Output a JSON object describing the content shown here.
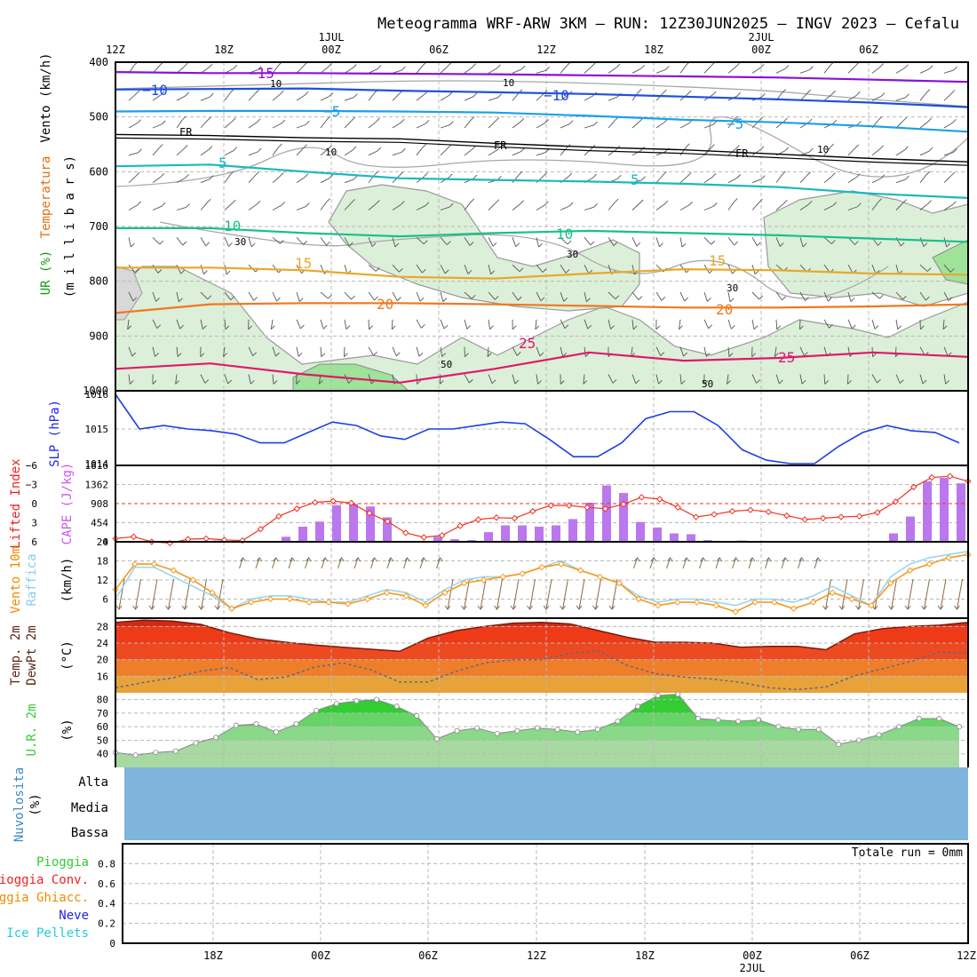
{
  "title": "Meteogramma WRF-ARW 3KM — RUN: 12Z30JUN2025 — INGV 2023 — Cefalu",
  "time_axis": {
    "top_labels": [
      "12Z",
      "18Z",
      "00Z",
      "06Z",
      "12Z",
      "18Z",
      "00Z",
      "06Z"
    ],
    "top_dates": [
      "1JUL",
      "2JUL"
    ],
    "bottom_labels": [
      "18Z",
      "00Z",
      "06Z",
      "12Z",
      "18Z",
      "00Z",
      "06Z",
      "12Z"
    ],
    "bottom_date": "2JUL"
  },
  "panel_labels": {
    "vento_kmh": "Vento (km/h)",
    "temperatura": "Temperatura",
    "ur_pct": "UR (%)",
    "millibars": "(m i l l i b a r s)",
    "slp": "SLP (hPa)",
    "lifted_index": "Lifted Index",
    "cape": "CAPE (J/kg)",
    "vento10m": "Vento 10m",
    "raffica": "Raffica",
    "kmh": "(km/h)",
    "temp2m": "Temp. 2m",
    "dewpt2m": "DewPt 2m",
    "degc": "(°C)",
    "ur2m": "U.R. 2m",
    "pct": "(%)",
    "nuvolosita": "Nuvolosita",
    "nuv_pct": "(%)",
    "alta": "Alta",
    "media": "Media",
    "bassa": "Bassa",
    "pioggia": "Pioggia",
    "pioggia_conv": "Pioggia Conv.",
    "pioggia_ghiacc": "Pioggia Ghiacc.",
    "neve": "Neve",
    "ice_pellets": "Ice Pellets",
    "totale_run": "Totale run = 0mm"
  },
  "colors": {
    "iso_m15": "#8a10d8",
    "iso_m10": "#1e4fe0",
    "iso_m5": "#1aa0e8",
    "iso_5": "#1ab8c0",
    "iso_10": "#18c08c",
    "iso_15": "#e8a82a",
    "iso_20": "#f07820",
    "iso_25": "#e0186e",
    "freezing": "#000000",
    "humidity_fill": "#dcefd8",
    "slp_line": "#1e3ee0",
    "cape_bar": "#bb77ee",
    "lifted_index": "#ee3322",
    "wind10m": "#f49a1e",
    "gust": "#9cd4f0",
    "temp_top": "#c41e10",
    "dewpoint_line": "#606880",
    "rh_green": "#33cc33",
    "cloud_fill": "#7fb4dc",
    "label_green": "#33cc33",
    "label_red": "#ee2222",
    "label_orange": "#f08a00",
    "label_blue": "#2222ee",
    "label_cyan": "#22ccdd",
    "label_purple": "#cc55ee",
    "label_sky": "#88ccee"
  },
  "chart_data": [
    {
      "panel": "upper-air",
      "type": "line",
      "y_axis": {
        "label": "millibars",
        "ticks": [
          400,
          500,
          600,
          700,
          800,
          900,
          1000
        ],
        "ylim": [
          400,
          1000
        ],
        "inverted": true
      },
      "isotherm_labels": [
        "−15",
        "−10",
        "−5",
        "5",
        "10",
        "15",
        "20",
        "25",
        "FR"
      ],
      "isotherm_labels_plain": [
        "−15",
        "−10",
        "−5",
        "5",
        "10",
        "15",
        "20",
        "25"
      ],
      "rh_contour_labels": [
        "10",
        "30",
        "50"
      ],
      "series": [
        {
          "label": "-15",
          "p": [
            418,
            420,
            420,
            421,
            422,
            424,
            426,
            428,
            432,
            436
          ]
        },
        {
          "label": "-10",
          "p": [
            450,
            449,
            448,
            452,
            455,
            458,
            463,
            468,
            474,
            482
          ]
        },
        {
          "label": "-5",
          "p": [
            490,
            489,
            489,
            490,
            492,
            498,
            505,
            510,
            517,
            527
          ]
        },
        {
          "label": "FR",
          "p": [
            532,
            534,
            538,
            540,
            548,
            555,
            560,
            568,
            576,
            582
          ]
        },
        {
          "label": "5",
          "p": [
            590,
            587,
            600,
            612,
            615,
            618,
            622,
            628,
            640,
            648
          ]
        },
        {
          "label": "10",
          "p": [
            703,
            703,
            712,
            718,
            712,
            708,
            712,
            716,
            722,
            728
          ]
        },
        {
          "label": "15",
          "p": [
            775,
            775,
            780,
            792,
            795,
            786,
            778,
            780,
            786,
            788
          ]
        },
        {
          "label": "20",
          "p": [
            858,
            842,
            840,
            840,
            842,
            845,
            848,
            848,
            846,
            842
          ]
        },
        {
          "label": "25",
          "p": [
            960,
            950,
            970,
            985,
            960,
            930,
            945,
            940,
            930,
            938
          ]
        }
      ]
    },
    {
      "panel": "slp",
      "type": "line",
      "y_axis": {
        "label": "SLP (hPa)",
        "ticks": [
          1014,
          1015,
          1016
        ],
        "ylim": [
          1014,
          1016.05
        ]
      },
      "values": [
        1016.0,
        1015.0,
        1015.1,
        1015.0,
        1014.95,
        1014.85,
        1014.6,
        1014.6,
        1014.9,
        1015.2,
        1015.1,
        1014.8,
        1014.7,
        1015.0,
        1015.0,
        1015.1,
        1015.2,
        1015.15,
        1014.7,
        1014.2,
        1014.2,
        1014.6,
        1015.3,
        1015.5,
        1015.5,
        1015.1,
        1014.4,
        1014.1,
        1014.0,
        1014.0,
        1014.5,
        1014.9,
        1015.1,
        1014.95,
        1014.9,
        1014.6
      ]
    },
    {
      "panel": "cape-lifted-index",
      "type": "bar",
      "y_axis_cape": {
        "label": "CAPE (J/kg)",
        "ticks": [
          0,
          454,
          908,
          1362,
          1816
        ],
        "ylim": [
          0,
          1816
        ]
      },
      "y_axis_li": {
        "label": "Lifted Index",
        "ticks": [
          -6,
          -3,
          0,
          3,
          6
        ],
        "ylim": [
          6,
          -6
        ]
      },
      "cape": [
        0,
        0,
        0,
        0,
        10,
        20,
        30,
        0,
        0,
        0,
        120,
        360,
        480,
        870,
        900,
        840,
        580,
        0,
        0,
        120,
        60,
        40,
        230,
        390,
        390,
        360,
        390,
        540,
        930,
        1340,
        1160,
        470,
        340,
        200,
        180,
        40,
        0,
        30,
        0,
        0,
        0,
        0,
        0,
        0,
        0,
        0,
        200,
        600,
        1440,
        1520,
        1390
      ],
      "lifted_index": [
        5.5,
        5.2,
        6.0,
        6.2,
        5.6,
        5.5,
        5.7,
        5.8,
        4.0,
        2.0,
        0.8,
        -0.2,
        -0.4,
        -0.1,
        1.5,
        2.8,
        4.6,
        5.3,
        5.0,
        3.5,
        2.5,
        2.2,
        2.3,
        1.2,
        0.3,
        0.3,
        0.6,
        0.8,
        0.1,
        -1.0,
        -0.7,
        0.6,
        2.1,
        1.7,
        1.2,
        1.0,
        1.3,
        1.9,
        2.5,
        2.3,
        2.1,
        2.0,
        1.4,
        -0.3,
        -2.6,
        -4.1,
        -4.3,
        -3.5
      ]
    },
    {
      "panel": "wind-10m",
      "type": "line",
      "y_axis": {
        "label": "(km/h)",
        "ticks": [
          6,
          12,
          18,
          24
        ],
        "ylim": [
          0,
          24
        ]
      },
      "series": [
        {
          "name": "Vento 10m",
          "values": [
            9,
            17,
            17,
            15,
            12,
            8,
            3,
            5,
            6,
            6,
            5,
            5,
            4.5,
            6,
            8,
            7,
            4,
            8,
            11,
            12,
            13,
            14,
            16,
            17,
            15,
            13,
            11,
            6,
            4,
            5,
            5,
            4,
            2,
            5,
            5,
            3,
            5,
            8,
            6,
            4,
            11,
            15,
            17,
            19,
            20
          ]
        },
        {
          "name": "Raffica",
          "values": [
            6,
            16,
            16,
            13,
            10,
            7,
            3,
            6,
            7,
            7,
            6,
            5,
            5,
            7,
            9,
            8,
            5,
            9,
            12,
            13,
            13,
            14,
            16,
            18,
            15,
            13,
            11,
            7,
            5,
            6,
            6,
            5,
            4,
            6,
            6,
            5,
            7,
            10,
            7,
            4,
            13,
            17,
            19,
            20,
            21
          ]
        }
      ]
    },
    {
      "panel": "temp-dewpoint",
      "type": "area",
      "y_axis": {
        "label": "(°C)",
        "ticks": [
          16,
          20,
          24,
          28
        ],
        "ylim": [
          12,
          30
        ]
      },
      "series": [
        {
          "name": "Temp. 2m",
          "values": [
            29,
            29.5,
            29.3,
            28.5,
            26.5,
            25,
            24.2,
            23.5,
            23,
            22.5,
            22,
            25.2,
            27,
            28,
            28.8,
            29,
            28.6,
            27,
            25.4,
            24.2,
            24.2,
            24,
            23,
            23.2,
            23.2,
            22.4,
            26.2,
            27.5,
            28,
            28.3,
            29
          ]
        },
        {
          "name": "DewPt 2m",
          "values": [
            13.2,
            14.5,
            15.6,
            17.2,
            18.1,
            15.2,
            15.8,
            18.2,
            19.2,
            17.5,
            14.6,
            14.6,
            17.2,
            19.2,
            20.0,
            20.0,
            21.5,
            22.2,
            18.6,
            16.6,
            15.8,
            15.3,
            14.5,
            13.2,
            12.8,
            13.4,
            16.1,
            17.8,
            19.6,
            21.8,
            21.6
          ]
        }
      ]
    },
    {
      "panel": "relative-humidity-2m",
      "type": "area",
      "y_axis": {
        "label": "(%)",
        "ticks": [
          40,
          50,
          60,
          70,
          80
        ],
        "ylim": [
          30,
          85
        ]
      },
      "values": [
        41,
        39,
        41,
        42,
        48,
        52,
        61,
        62,
        56,
        62,
        72,
        77,
        79,
        80,
        75,
        68,
        51,
        57,
        59,
        55,
        57,
        59,
        58,
        56,
        58,
        64,
        75,
        83,
        84,
        66,
        65,
        64,
        65,
        60,
        58,
        58,
        47,
        50,
        54,
        60,
        66,
        66,
        60
      ]
    },
    {
      "panel": "cloud-cover",
      "type": "area",
      "levels": [
        "Alta",
        "Media",
        "Bassa"
      ],
      "values": {
        "Alta": [
          100
        ],
        "Media": [
          100
        ],
        "Bassa": [
          100
        ]
      }
    },
    {
      "panel": "precipitation",
      "type": "bar",
      "y_axis": {
        "ticks": [
          0,
          0.2,
          0.4,
          0.6,
          0.8
        ],
        "ylim": [
          0,
          1.0
        ]
      },
      "series": [
        {
          "name": "Pioggia",
          "values": [
            0
          ]
        },
        {
          "name": "Pioggia Conv.",
          "values": [
            0
          ]
        },
        {
          "name": "Pioggia Ghiacc.",
          "values": [
            0
          ]
        },
        {
          "name": "Neve",
          "values": [
            0
          ]
        },
        {
          "name": "Ice Pellets",
          "values": [
            0
          ]
        }
      ],
      "total": "Totale run = 0mm"
    }
  ]
}
